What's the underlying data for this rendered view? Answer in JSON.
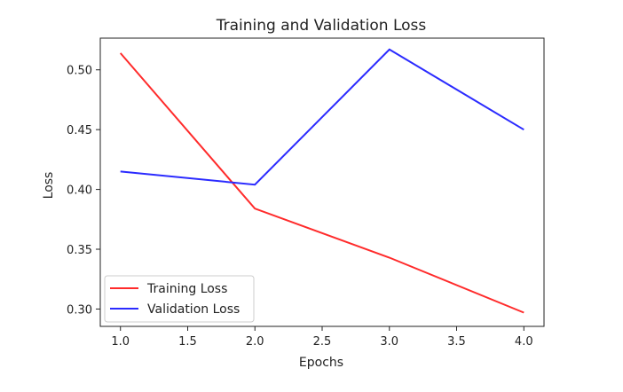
{
  "chart_data": {
    "type": "line",
    "title": "Training and Validation Loss",
    "xlabel": "Epochs",
    "ylabel": "Loss",
    "xlim": [
      0.85,
      4.15
    ],
    "ylim": [
      0.2855,
      0.5265
    ],
    "xticks": [
      1.0,
      1.5,
      2.0,
      2.5,
      3.0,
      3.5,
      4.0
    ],
    "xtick_labels": [
      "1.0",
      "1.5",
      "2.0",
      "2.5",
      "3.0",
      "3.5",
      "4.0"
    ],
    "yticks": [
      0.3,
      0.35,
      0.4,
      0.45,
      0.5
    ],
    "ytick_labels": [
      "0.30",
      "0.35",
      "0.40",
      "0.45",
      "0.50"
    ],
    "grid": false,
    "legend_position": "lower-left",
    "x": [
      1,
      2,
      3,
      4
    ],
    "series": [
      {
        "name": "Training Loss",
        "color": "#ff2b2b",
        "values": [
          0.514,
          0.384,
          0.343,
          0.297
        ]
      },
      {
        "name": "Validation Loss",
        "color": "#2b2bff",
        "values": [
          0.415,
          0.404,
          0.517,
          0.45
        ]
      }
    ]
  }
}
